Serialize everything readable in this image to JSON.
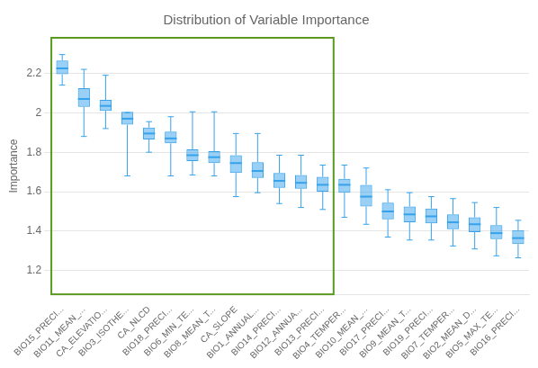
{
  "chart_data": {
    "type": "box",
    "title": "Distribution of Variable Importance",
    "y_label": "Importance",
    "categories": [
      "BIO15_PRECI...",
      "BIO11_MEAN_...",
      "CA_ELEVATIO...",
      "BIO3_ISOTHE...",
      "CA_NLCD",
      "BIO18_PRECI...",
      "BIO6_MIN_TE...",
      "BIO8_MEAN_T...",
      "CA_SLOPE",
      "BIO1_ANNUAL...",
      "BIO14_PRECI...",
      "BIO12_ANNUA...",
      "BIO13_PRECI...",
      "BIO4_TEMPER...",
      "BIO10_MEAN_...",
      "BIO17_PRECI...",
      "BIO9_MEAN_T...",
      "BIO19_PRECI...",
      "BIO7_TEMPER...",
      "BIO2_MEAN_D...",
      "BIO5_MAX_TE...",
      "BIO16_PRECI..."
    ],
    "boxes": [
      {
        "median": 2.225,
        "q1": 2.195,
        "q3": 2.265,
        "whisker_low": 2.14,
        "whisker_high": 2.295
      },
      {
        "median": 2.07,
        "q1": 2.03,
        "q3": 2.125,
        "whisker_low": 1.88,
        "whisker_high": 2.22
      },
      {
        "median": 2.035,
        "q1": 2.01,
        "q3": 2.065,
        "whisker_low": 1.92,
        "whisker_high": 2.19
      },
      {
        "median": 1.97,
        "q1": 1.94,
        "q3": 2.005,
        "whisker_low": 1.68,
        "whisker_high": 2.0
      },
      {
        "median": 1.895,
        "q1": 1.865,
        "q3": 1.925,
        "whisker_low": 1.8,
        "whisker_high": 1.955
      },
      {
        "median": 1.87,
        "q1": 1.845,
        "q3": 1.905,
        "whisker_low": 1.68,
        "whisker_high": 1.98
      },
      {
        "median": 1.785,
        "q1": 1.755,
        "q3": 1.815,
        "whisker_low": 1.685,
        "whisker_high": 2.005
      },
      {
        "median": 1.775,
        "q1": 1.745,
        "q3": 1.805,
        "whisker_low": 1.68,
        "whisker_high": 2.005
      },
      {
        "median": 1.745,
        "q1": 1.695,
        "q3": 1.785,
        "whisker_low": 1.575,
        "whisker_high": 1.895
      },
      {
        "median": 1.705,
        "q1": 1.67,
        "q3": 1.75,
        "whisker_low": 1.595,
        "whisker_high": 1.895
      },
      {
        "median": 1.655,
        "q1": 1.62,
        "q3": 1.695,
        "whisker_low": 1.54,
        "whisker_high": 1.785
      },
      {
        "median": 1.645,
        "q1": 1.615,
        "q3": 1.685,
        "whisker_low": 1.52,
        "whisker_high": 1.785
      },
      {
        "median": 1.635,
        "q1": 1.6,
        "q3": 1.675,
        "whisker_low": 1.51,
        "whisker_high": 1.735
      },
      {
        "median": 1.635,
        "q1": 1.595,
        "q3": 1.665,
        "whisker_low": 1.47,
        "whisker_high": 1.735
      },
      {
        "median": 1.575,
        "q1": 1.525,
        "q3": 1.635,
        "whisker_low": 1.435,
        "whisker_high": 1.72
      },
      {
        "median": 1.5,
        "q1": 1.46,
        "q3": 1.545,
        "whisker_low": 1.37,
        "whisker_high": 1.61
      },
      {
        "median": 1.485,
        "q1": 1.445,
        "q3": 1.525,
        "whisker_low": 1.355,
        "whisker_high": 1.595
      },
      {
        "median": 1.475,
        "q1": 1.44,
        "q3": 1.515,
        "whisker_low": 1.355,
        "whisker_high": 1.575
      },
      {
        "median": 1.445,
        "q1": 1.41,
        "q3": 1.485,
        "whisker_low": 1.325,
        "whisker_high": 1.565
      },
      {
        "median": 1.435,
        "q1": 1.395,
        "q3": 1.47,
        "whisker_low": 1.31,
        "whisker_high": 1.545
      },
      {
        "median": 1.39,
        "q1": 1.36,
        "q3": 1.43,
        "whisker_low": 1.275,
        "whisker_high": 1.52
      },
      {
        "median": 1.365,
        "q1": 1.335,
        "q3": 1.405,
        "whisker_low": 1.265,
        "whisker_high": 1.455
      }
    ],
    "highlight": {
      "count": 13,
      "color": "#5a9a20"
    },
    "ylim": [
      1.08,
      2.38
    ],
    "yticks": [
      1.2,
      1.4,
      1.6,
      1.8,
      2.0,
      2.2
    ],
    "grid": "y"
  }
}
